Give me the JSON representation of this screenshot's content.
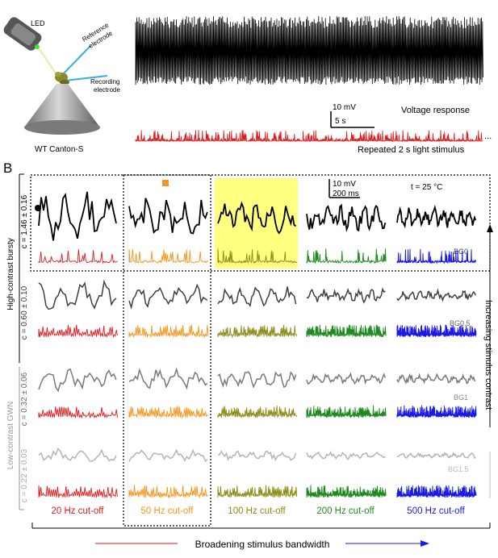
{
  "panel_a": {
    "led_label": "LED",
    "ref_label_1": "Reference",
    "ref_label_2": "electrode",
    "rec_label_1": "Recording",
    "rec_label_2": "electrode",
    "fly_label": "WT Canton-S",
    "scale_mv": "10 mV",
    "scale_s": "5 s",
    "voltage_label": "Voltage response",
    "stimulus_label": "Repeated 2 s light stimulus",
    "ellipsis": "..."
  },
  "panel_b": {
    "letter": "B",
    "scale_mv": "10 mV",
    "scale_ms": "200 ms",
    "temperature": "t = 25 °C",
    "rows": [
      {
        "c_label": "c = 1.46 ± 0.16",
        "bg": "BG0"
      },
      {
        "c_label": "c = 0.60 ± 0.10",
        "bg": "BG0.5"
      },
      {
        "c_label": "c = 0.32 ± 0.06",
        "bg": "BG1"
      },
      {
        "c_label": "c = 0.22 ± 0.03",
        "bg": "BG1.5"
      }
    ],
    "group_high": "High-contrast bursty",
    "group_low": "Low-contrast GWN",
    "columns": [
      {
        "label": "20 Hz cut-off",
        "color": "#e31a1c"
      },
      {
        "label": "50 Hz cut-off",
        "color": "#f7941d"
      },
      {
        "label": "100 Hz cut-off",
        "color": "#8c8c1a"
      },
      {
        "label": "200 Hz cut-off",
        "color": "#1f8a1f"
      },
      {
        "label": "500 Hz cut-off",
        "color": "#1a1ae6"
      }
    ],
    "contrast_axis": "Increasing stimulus contrast",
    "bandwidth_axis": "Broadening stimulus bandwidth",
    "highlight_color": "#ffff80",
    "row_colors": [
      "#000000",
      "#404040",
      "#7a7a7a",
      "#b4b4b4"
    ]
  }
}
